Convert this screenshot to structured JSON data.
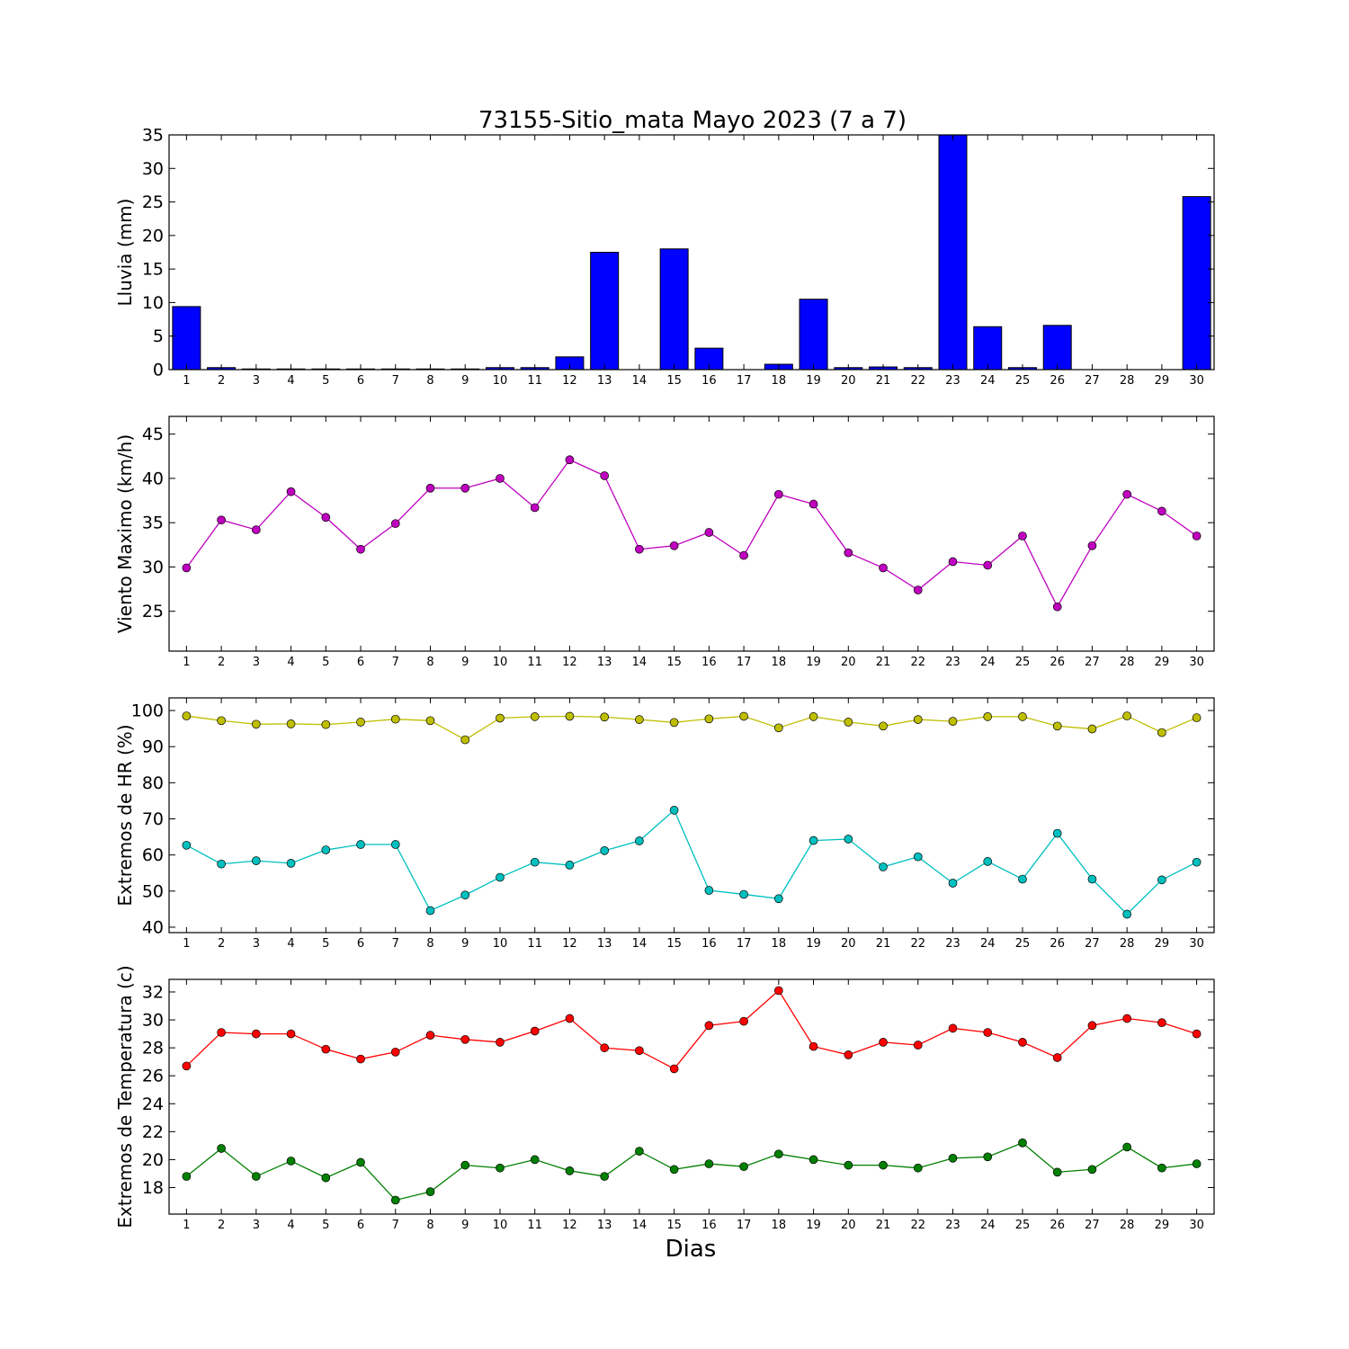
{
  "figure": {
    "title": "73155-Sitio_mata Mayo 2023  (7 a 7)",
    "xlabel": "Dias"
  },
  "chart_data": [
    {
      "id": "rain",
      "type": "bar",
      "ylabel": "Lluvia (mm)",
      "x": [
        1,
        2,
        3,
        4,
        5,
        6,
        7,
        8,
        9,
        10,
        11,
        12,
        13,
        14,
        15,
        16,
        17,
        18,
        19,
        20,
        21,
        22,
        23,
        24,
        25,
        26,
        27,
        28,
        29,
        30
      ],
      "xlim": [
        0.5,
        30.5
      ],
      "ylim": [
        0,
        35
      ],
      "yticks": [
        0,
        5,
        10,
        15,
        20,
        25,
        30,
        35
      ],
      "series": [
        {
          "color": "#0000ff",
          "values": [
            9.4,
            0.3,
            0.1,
            0.1,
            0.1,
            0.1,
            0.1,
            0.1,
            0.1,
            0.3,
            0.3,
            1.9,
            17.5,
            0,
            18.0,
            3.2,
            0,
            0.8,
            10.5,
            0.3,
            0.4,
            0.3,
            35.0,
            6.4,
            0.3,
            6.6,
            0,
            0,
            0,
            25.8
          ]
        }
      ]
    },
    {
      "id": "wind",
      "type": "line",
      "ylabel": "Viento Maximo (km/h)",
      "x": [
        1,
        2,
        3,
        4,
        5,
        6,
        7,
        8,
        9,
        10,
        11,
        12,
        13,
        14,
        15,
        16,
        17,
        18,
        19,
        20,
        21,
        22,
        23,
        24,
        25,
        26,
        27,
        28,
        29,
        30
      ],
      "xlim": [
        0.5,
        30.5
      ],
      "ylim": [
        20.5,
        47
      ],
      "yticks": [
        25,
        30,
        35,
        40,
        45
      ],
      "series": [
        {
          "color": "#bf00bf",
          "values": [
            29.9,
            35.3,
            34.2,
            38.5,
            35.6,
            32.0,
            34.9,
            38.9,
            38.9,
            40.0,
            36.7,
            42.1,
            40.3,
            32.0,
            32.4,
            33.9,
            31.3,
            38.2,
            37.1,
            31.6,
            29.9,
            27.4,
            30.6,
            30.2,
            33.5,
            25.5,
            32.4,
            38.2,
            36.3,
            33.5
          ]
        }
      ]
    },
    {
      "id": "hr",
      "type": "line",
      "ylabel": "Extremos de HR (%)",
      "x": [
        1,
        2,
        3,
        4,
        5,
        6,
        7,
        8,
        9,
        10,
        11,
        12,
        13,
        14,
        15,
        16,
        17,
        18,
        19,
        20,
        21,
        22,
        23,
        24,
        25,
        26,
        27,
        28,
        29,
        30
      ],
      "xlim": [
        0.5,
        30.5
      ],
      "ylim": [
        38.5,
        103.5
      ],
      "yticks": [
        40,
        50,
        60,
        70,
        80,
        90,
        100
      ],
      "series": [
        {
          "color": "#bfbf00",
          "values": [
            98.5,
            97.2,
            96.2,
            96.3,
            96.1,
            96.8,
            97.6,
            97.2,
            91.9,
            97.9,
            98.3,
            98.4,
            98.2,
            97.5,
            96.7,
            97.7,
            98.4,
            95.2,
            98.3,
            96.8,
            95.7,
            97.5,
            97.0,
            98.3,
            98.3,
            95.7,
            94.9,
            98.5,
            93.9,
            98.0
          ]
        },
        {
          "color": "#00bfbf",
          "values": [
            62.7,
            57.5,
            58.4,
            57.7,
            61.4,
            62.9,
            62.9,
            44.6,
            48.9,
            53.8,
            58.0,
            57.2,
            61.2,
            63.9,
            72.4,
            50.2,
            49.1,
            47.9,
            64.0,
            64.4,
            56.7,
            59.5,
            52.2,
            58.2,
            53.3,
            66.0,
            53.3,
            43.6,
            53.1,
            58.0
          ]
        }
      ]
    },
    {
      "id": "temp",
      "type": "line",
      "ylabel": "Extremos de Temperatura (c)",
      "x": [
        1,
        2,
        3,
        4,
        5,
        6,
        7,
        8,
        9,
        10,
        11,
        12,
        13,
        14,
        15,
        16,
        17,
        18,
        19,
        20,
        21,
        22,
        23,
        24,
        25,
        26,
        27,
        28,
        29,
        30
      ],
      "xlim": [
        0.5,
        30.5
      ],
      "ylim": [
        16.1,
        32.9
      ],
      "yticks": [
        18,
        20,
        22,
        24,
        26,
        28,
        30,
        32
      ],
      "series": [
        {
          "color": "#ff0000",
          "values": [
            26.7,
            29.1,
            29.0,
            29.0,
            27.9,
            27.2,
            27.7,
            28.9,
            28.6,
            28.4,
            29.2,
            30.1,
            28.0,
            27.8,
            26.5,
            29.6,
            29.9,
            32.1,
            28.1,
            27.5,
            28.4,
            28.2,
            29.4,
            29.1,
            28.4,
            27.3,
            29.6,
            30.1,
            29.8,
            29.0
          ]
        },
        {
          "color": "#008000",
          "values": [
            18.8,
            20.8,
            18.8,
            19.9,
            18.7,
            19.8,
            17.1,
            17.7,
            19.6,
            19.4,
            20.0,
            19.2,
            18.8,
            20.6,
            19.3,
            19.7,
            19.5,
            20.4,
            20.0,
            19.6,
            19.6,
            19.4,
            20.1,
            20.2,
            21.2,
            19.1,
            19.3,
            20.9,
            19.4,
            19.7
          ]
        }
      ]
    }
  ]
}
